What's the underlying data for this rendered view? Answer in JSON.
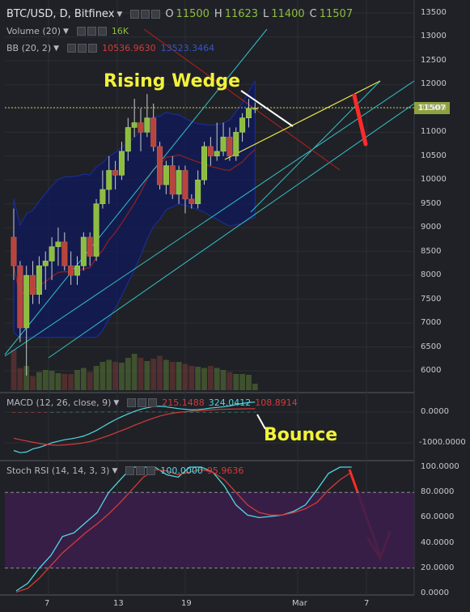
{
  "header": {
    "symbol": "BTC/USD, D, Bitfinex",
    "o_label": "O",
    "o_value": "11500",
    "h_label": "H",
    "h_value": "11623",
    "l_label": "L",
    "l_value": "11400",
    "c_label": "C",
    "c_value": "11507"
  },
  "volume": {
    "label": "Volume (20)",
    "value": "16K"
  },
  "bb": {
    "label": "BB (20, 2)",
    "value1": "10536.9630",
    "value2": "13523.3464"
  },
  "macd": {
    "label": "MACD (12, 26, close, 9)",
    "v1": "215.1488",
    "v2": "324.0412",
    "v3": "108.8914"
  },
  "stoch": {
    "label": "Stoch RSI (14, 14, 3, 3)",
    "v1": "100.0000",
    "v2": "95.9636"
  },
  "annotations": {
    "wedge": "Rising Wedge",
    "bounce": "Bounce"
  },
  "last_price": "11507",
  "colors": {
    "up": "#8dbd3f",
    "down": "#b8443d",
    "bg": "#1f2126",
    "bb_fill": "#101a5c",
    "bb_mid": "#8a2020",
    "channel": "#32c0c9",
    "macd": "#52d7e0",
    "signal": "#d33b3b",
    "stoch_k": "#52d7e0",
    "stoch_d": "#d33b3b",
    "stoch_band": "#3a1e4a",
    "annot": "#f2f23a",
    "arrow": "#ff2a2a"
  },
  "chart_data": [
    {
      "type": "candlestick",
      "title": "BTC/USD, D, Bitfinex",
      "ylim": [
        5600,
        13700
      ],
      "y_ticks": [
        "13500",
        "13000",
        "12500",
        "12000",
        "11500",
        "11000",
        "10500",
        "10000",
        "9500",
        "9000",
        "8500",
        "8000",
        "7500",
        "7000",
        "6500",
        "6000"
      ],
      "x_ticks": [
        "7",
        "13",
        "19",
        "Mar",
        "7"
      ],
      "candles": [
        [
          8800,
          9400,
          7900,
          8200
        ],
        [
          8200,
          8300,
          6600,
          6900
        ],
        [
          6900,
          8200,
          5900,
          8000
        ],
        [
          8000,
          8300,
          7400,
          7600
        ],
        [
          7600,
          8400,
          7400,
          8200
        ],
        [
          8200,
          8500,
          7700,
          8300
        ],
        [
          8300,
          8800,
          7900,
          8600
        ],
        [
          8600,
          9000,
          8200,
          8700
        ],
        [
          8700,
          8900,
          8100,
          8200
        ],
        [
          8200,
          8500,
          7800,
          8000
        ],
        [
          8000,
          8400,
          7800,
          8200
        ],
        [
          8200,
          8900,
          8100,
          8800
        ],
        [
          8800,
          8900,
          8200,
          8400
        ],
        [
          8400,
          9600,
          8300,
          9500
        ],
        [
          9500,
          10200,
          9400,
          9800
        ],
        [
          9800,
          10500,
          9500,
          10200
        ],
        [
          10200,
          10400,
          9800,
          10100
        ],
        [
          10100,
          10800,
          10000,
          10600
        ],
        [
          10600,
          11300,
          10400,
          11100
        ],
        [
          11100,
          11700,
          10900,
          11200
        ],
        [
          11200,
          11500,
          10600,
          11000
        ],
        [
          11000,
          11800,
          10900,
          11300
        ],
        [
          11300,
          11600,
          10600,
          10700
        ],
        [
          10700,
          10800,
          9800,
          9900
        ],
        [
          9900,
          10400,
          9700,
          10300
        ],
        [
          10300,
          10500,
          9600,
          9700
        ],
        [
          9700,
          10300,
          9500,
          10200
        ],
        [
          10200,
          10300,
          9300,
          9600
        ],
        [
          9600,
          9700,
          9400,
          9500
        ],
        [
          9500,
          10200,
          9400,
          10000
        ],
        [
          10000,
          10800,
          9900,
          10700
        ],
        [
          10700,
          10900,
          10300,
          10500
        ],
        [
          10500,
          11200,
          10400,
          10600
        ],
        [
          10600,
          11200,
          10500,
          10900
        ],
        [
          10900,
          11100,
          10400,
          10500
        ],
        [
          10500,
          11100,
          10400,
          11000
        ],
        [
          11000,
          11400,
          10800,
          11300
        ],
        [
          11300,
          11700,
          11100,
          11500
        ],
        [
          11500,
          11623,
          11400,
          11507
        ]
      ],
      "volume": [
        1.0,
        0.55,
        0.6,
        0.35,
        0.45,
        0.5,
        0.48,
        0.42,
        0.4,
        0.4,
        0.5,
        0.55,
        0.45,
        0.6,
        0.7,
        0.75,
        0.7,
        0.68,
        0.8,
        0.9,
        0.8,
        0.72,
        0.78,
        0.85,
        0.75,
        0.7,
        0.7,
        0.65,
        0.6,
        0.58,
        0.55,
        0.6,
        0.55,
        0.5,
        0.45,
        0.4,
        0.4,
        0.38,
        0.16
      ]
    },
    {
      "type": "line",
      "title": "MACD (12, 26, close, 9)",
      "ylim": [
        -1400,
        400
      ],
      "y_ticks": [
        "0.0000",
        "-1000.0000"
      ],
      "series": [
        {
          "name": "MACD",
          "values": [
            -1250,
            -1320,
            -1300,
            -1200,
            -1150,
            -1080,
            -1000,
            -950,
            -900,
            -870,
            -830,
            -780,
            -700,
            -600,
            -480,
            -360,
            -250,
            -150,
            -60,
            20,
            90,
            140,
            180,
            190,
            170,
            140,
            110,
            90,
            70,
            80,
            100,
            130,
            150,
            170,
            200,
            240,
            280,
            310,
            324
          ]
        },
        {
          "name": "Signal",
          "values": [
            -850,
            -900,
            -940,
            -980,
            -1020,
            -1050,
            -1070,
            -1080,
            -1070,
            -1050,
            -1030,
            -1000,
            -960,
            -900,
            -830,
            -760,
            -680,
            -600,
            -520,
            -430,
            -350,
            -270,
            -200,
            -130,
            -80,
            -40,
            -10,
            10,
            25,
            40,
            55,
            70,
            80,
            90,
            95,
            100,
            104,
            107,
            109
          ]
        }
      ]
    },
    {
      "type": "line",
      "title": "Stoch RSI (14, 14, 3, 3)",
      "ylim": [
        -3,
        103
      ],
      "y_ticks": [
        "100.0000",
        "80.0000",
        "60.0000",
        "40.0000",
        "20.0000",
        "0.0000"
      ],
      "bands": [
        20,
        80
      ],
      "series": [
        {
          "name": "K",
          "values": [
            2,
            8,
            20,
            30,
            45,
            48,
            56,
            64,
            80,
            90,
            100,
            100,
            100,
            94,
            92,
            100,
            100,
            96,
            85,
            70,
            62,
            60,
            61,
            62,
            65,
            70,
            82,
            95,
            100,
            100
          ]
        },
        {
          "name": "D",
          "values": [
            1,
            4,
            12,
            22,
            32,
            40,
            48,
            55,
            63,
            72,
            82,
            92,
            98,
            97,
            94,
            96,
            98,
            96,
            90,
            80,
            70,
            64,
            62,
            62,
            64,
            67,
            72,
            82,
            90,
            96
          ]
        }
      ]
    }
  ]
}
